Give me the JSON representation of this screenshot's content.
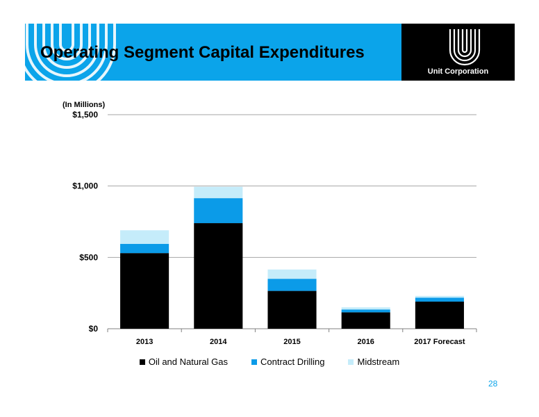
{
  "slide": {
    "title": "Operating Segment Capital Expenditures",
    "company": "Unit Corporation",
    "page_number": "28"
  },
  "colors": {
    "banner": "#0ba4ea",
    "oil_and_natural_gas": "#000000",
    "contract_drilling": "#0b9be8",
    "midstream": "#c5ecfa"
  },
  "chart_data": {
    "type": "bar",
    "stacked": true,
    "unit_label": "(In Millions)",
    "categories": [
      "2013",
      "2014",
      "2015",
      "2016",
      "2017 Forecast"
    ],
    "series": [
      {
        "name": "Oil and Natural Gas",
        "values": [
          530,
          740,
          265,
          115,
          190
        ],
        "color": "#000000"
      },
      {
        "name": "Contract Drilling",
        "values": [
          65,
          175,
          85,
          20,
          28
        ],
        "color": "#0b9be8"
      },
      {
        "name": "Midstream",
        "values": [
          95,
          80,
          65,
          15,
          12
        ],
        "color": "#c5ecfa"
      }
    ],
    "yticks": [
      0,
      500,
      1000,
      1500
    ],
    "ytick_labels": [
      "$0",
      "$500",
      "$1,000",
      "$1,500"
    ],
    "ylim": [
      0,
      1500
    ],
    "grid": true,
    "legend_position": "bottom"
  }
}
